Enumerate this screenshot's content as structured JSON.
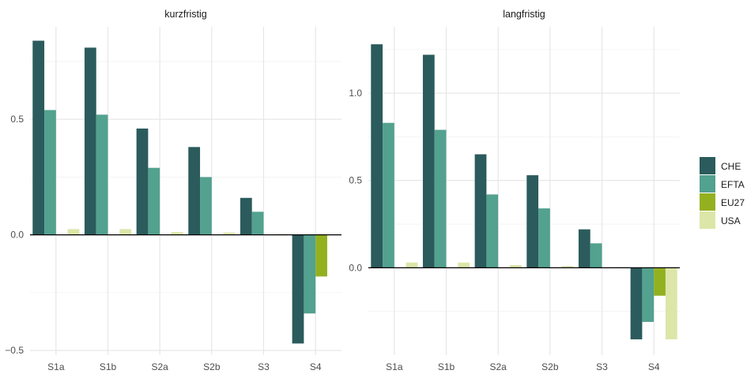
{
  "chart_data": [
    {
      "type": "bar",
      "title": "kurzfristig",
      "categories": [
        "S1a",
        "S1b",
        "S2a",
        "S2b",
        "S3",
        "S4"
      ],
      "ylim": [
        -0.52,
        0.9
      ],
      "yticks": [
        -0.5,
        0.0,
        0.5
      ],
      "ytick_labels": [
        "−0.5",
        "0.0",
        "0.5"
      ],
      "grid": true,
      "series": [
        {
          "name": "CHE",
          "values": [
            0.84,
            0.81,
            0.46,
            0.38,
            0.16,
            -0.47
          ]
        },
        {
          "name": "EFTA",
          "values": [
            0.54,
            0.52,
            0.29,
            0.25,
            0.1,
            -0.34
          ]
        },
        {
          "name": "EU27",
          "values": [
            0.0,
            0.0,
            0.0,
            0.0,
            0.0,
            -0.18
          ]
        },
        {
          "name": "USA",
          "values": [
            0.025,
            0.025,
            0.012,
            0.01,
            0.004,
            0.0
          ]
        }
      ]
    },
    {
      "type": "bar",
      "title": "langfristig",
      "categories": [
        "S1a",
        "S1b",
        "S2a",
        "S2b",
        "S3",
        "S4"
      ],
      "ylim": [
        -0.5,
        1.38
      ],
      "yticks": [
        0.0,
        0.5,
        1.0
      ],
      "ytick_labels": [
        "0.0",
        "0.5",
        "1.0"
      ],
      "grid": true,
      "series": [
        {
          "name": "CHE",
          "values": [
            1.28,
            1.22,
            0.65,
            0.53,
            0.22,
            -0.41
          ]
        },
        {
          "name": "EFTA",
          "values": [
            0.83,
            0.79,
            0.42,
            0.34,
            0.14,
            -0.31
          ]
        },
        {
          "name": "EU27",
          "values": [
            0.0,
            0.0,
            0.0,
            0.0,
            0.0,
            -0.16
          ]
        },
        {
          "name": "USA",
          "values": [
            0.03,
            0.03,
            0.015,
            0.01,
            0.003,
            -0.41
          ]
        }
      ]
    }
  ],
  "legend": {
    "position": "right",
    "items": [
      {
        "label": "CHE",
        "color": "#2b5b5c"
      },
      {
        "label": "EFTA",
        "color": "#53a18f"
      },
      {
        "label": "EU27",
        "color": "#93b021"
      },
      {
        "label": "USA",
        "color": "#dce6a8"
      }
    ]
  }
}
